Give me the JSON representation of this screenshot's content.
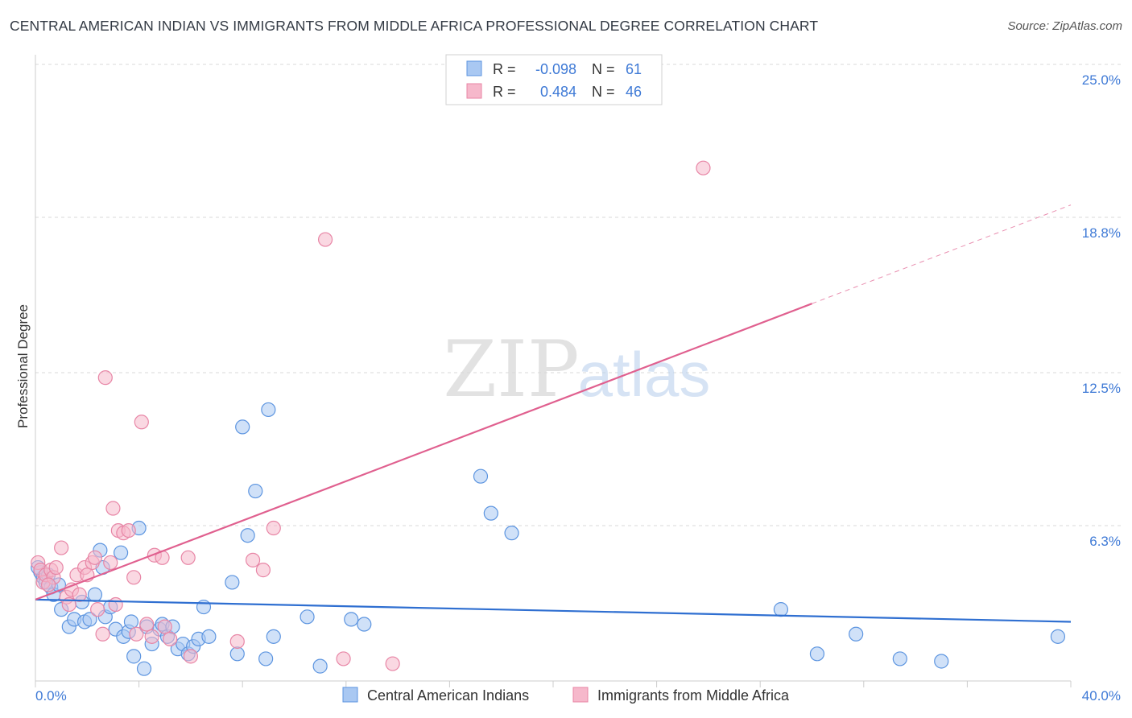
{
  "title": "CENTRAL AMERICAN INDIAN VS IMMIGRANTS FROM MIDDLE AFRICA PROFESSIONAL DEGREE CORRELATION CHART",
  "source": "Source: ZipAtlas.com",
  "watermark": {
    "zip": "ZIP",
    "atlas": "atlas"
  },
  "colors": {
    "blue_fill": "#a9c8f2",
    "blue_stroke": "#5d95e0",
    "blue_line": "#2f6fd1",
    "pink_fill": "#f6b8cb",
    "pink_stroke": "#e886a6",
    "pink_line": "#e0608f",
    "grid": "#d8d8d8",
    "tick_text": "#3f7ad6"
  },
  "legend": {
    "r_label": "R =",
    "n_label": "N =",
    "series": [
      {
        "r": "-0.098",
        "n": "61"
      },
      {
        "r": "0.484",
        "n": "46"
      }
    ]
  },
  "chart_data": {
    "type": "scatter",
    "title": "CENTRAL AMERICAN INDIAN VS IMMIGRANTS FROM MIDDLE AFRICA PROFESSIONAL DEGREE CORRELATION CHART",
    "xlabel": "",
    "ylabel": "Professional Degree",
    "xlim": [
      0,
      40
    ],
    "ylim": [
      0,
      25
    ],
    "x_tick_labels": [
      "0.0%",
      "40.0%"
    ],
    "y_ticks": [
      6.3,
      12.5,
      18.8,
      25.0
    ],
    "y_tick_labels": [
      "6.3%",
      "12.5%",
      "18.8%",
      "25.0%"
    ],
    "grid": true,
    "series": [
      {
        "name": "Central American Indians",
        "color": "#5d95e0",
        "trend": {
          "x": [
            0,
            40
          ],
          "y": [
            3.3,
            2.4
          ],
          "solid_to": 40
        },
        "points": [
          [
            0.2,
            4.4
          ],
          [
            0.3,
            4.2
          ],
          [
            0.4,
            4.0
          ],
          [
            0.5,
            4.3
          ],
          [
            0.6,
            3.8
          ],
          [
            0.7,
            3.5
          ],
          [
            0.9,
            3.9
          ],
          [
            1.0,
            2.9
          ],
          [
            1.3,
            2.2
          ],
          [
            1.5,
            2.5
          ],
          [
            1.8,
            3.2
          ],
          [
            1.9,
            2.4
          ],
          [
            2.1,
            2.5
          ],
          [
            2.3,
            3.5
          ],
          [
            2.5,
            5.3
          ],
          [
            2.6,
            4.6
          ],
          [
            2.7,
            2.6
          ],
          [
            2.9,
            3.0
          ],
          [
            3.1,
            2.1
          ],
          [
            3.3,
            5.2
          ],
          [
            3.4,
            1.8
          ],
          [
            3.6,
            2.0
          ],
          [
            3.7,
            2.4
          ],
          [
            3.8,
            1.0
          ],
          [
            4.0,
            6.2
          ],
          [
            4.2,
            0.5
          ],
          [
            4.3,
            2.2
          ],
          [
            4.5,
            1.5
          ],
          [
            4.8,
            2.1
          ],
          [
            4.9,
            2.3
          ],
          [
            5.1,
            1.8
          ],
          [
            5.3,
            2.2
          ],
          [
            5.5,
            1.3
          ],
          [
            5.7,
            1.5
          ],
          [
            5.9,
            1.1
          ],
          [
            6.1,
            1.4
          ],
          [
            6.3,
            1.7
          ],
          [
            6.5,
            3.0
          ],
          [
            6.7,
            1.8
          ],
          [
            7.6,
            4.0
          ],
          [
            7.8,
            1.1
          ],
          [
            8.0,
            10.3
          ],
          [
            8.2,
            5.9
          ],
          [
            8.5,
            7.7
          ],
          [
            8.9,
            0.9
          ],
          [
            9.0,
            11.0
          ],
          [
            9.2,
            1.8
          ],
          [
            10.5,
            2.6
          ],
          [
            11.0,
            0.6
          ],
          [
            12.2,
            2.5
          ],
          [
            12.7,
            2.3
          ],
          [
            17.2,
            8.3
          ],
          [
            17.6,
            6.8
          ],
          [
            18.4,
            6.0
          ],
          [
            28.8,
            2.9
          ],
          [
            30.2,
            1.1
          ],
          [
            31.7,
            1.9
          ],
          [
            33.4,
            0.9
          ],
          [
            35.0,
            0.8
          ],
          [
            39.5,
            1.8
          ],
          [
            0.1,
            4.6
          ]
        ]
      },
      {
        "name": "Immigrants from Middle Africa",
        "color": "#e886a6",
        "trend": {
          "x": [
            0,
            40
          ],
          "y": [
            3.3,
            19.3
          ],
          "solid_to": 30
        },
        "points": [
          [
            0.1,
            4.8
          ],
          [
            0.2,
            4.5
          ],
          [
            0.3,
            4.0
          ],
          [
            0.4,
            4.3
          ],
          [
            0.6,
            4.5
          ],
          [
            0.7,
            4.2
          ],
          [
            0.8,
            4.6
          ],
          [
            1.0,
            5.4
          ],
          [
            1.2,
            3.4
          ],
          [
            1.4,
            3.7
          ],
          [
            1.6,
            4.3
          ],
          [
            1.7,
            3.5
          ],
          [
            1.9,
            4.6
          ],
          [
            2.0,
            4.3
          ],
          [
            2.2,
            4.8
          ],
          [
            2.3,
            5.0
          ],
          [
            2.4,
            2.9
          ],
          [
            2.6,
            1.9
          ],
          [
            2.7,
            12.3
          ],
          [
            2.9,
            4.8
          ],
          [
            3.0,
            7.0
          ],
          [
            3.1,
            3.1
          ],
          [
            3.2,
            6.1
          ],
          [
            3.4,
            6.0
          ],
          [
            3.6,
            6.1
          ],
          [
            3.8,
            4.2
          ],
          [
            3.9,
            1.9
          ],
          [
            4.1,
            10.5
          ],
          [
            4.3,
            2.3
          ],
          [
            4.5,
            1.8
          ],
          [
            4.6,
            5.1
          ],
          [
            4.9,
            5.0
          ],
          [
            5.0,
            2.2
          ],
          [
            5.2,
            1.7
          ],
          [
            5.9,
            5.0
          ],
          [
            6.0,
            1.0
          ],
          [
            7.8,
            1.6
          ],
          [
            8.4,
            4.9
          ],
          [
            8.8,
            4.5
          ],
          [
            9.2,
            6.2
          ],
          [
            11.2,
            17.9
          ],
          [
            11.9,
            0.9
          ],
          [
            13.8,
            0.7
          ],
          [
            25.8,
            20.8
          ],
          [
            0.5,
            3.9
          ],
          [
            1.3,
            3.1
          ]
        ]
      }
    ]
  }
}
